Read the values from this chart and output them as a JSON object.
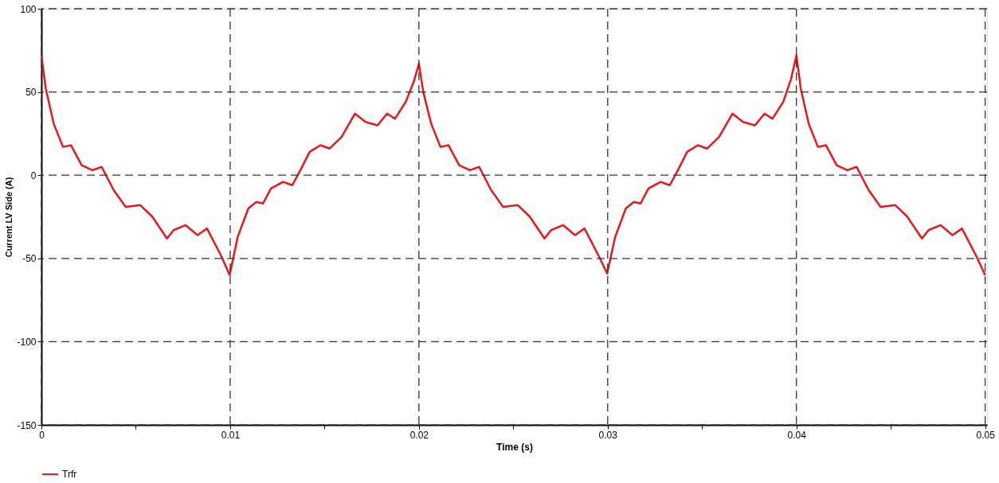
{
  "chart_data": {
    "type": "line",
    "xlabel": "Time (s)",
    "ylabel": "Current LV Side (A)",
    "xlim": [
      0,
      0.0501
    ],
    "ylim": [
      -150,
      100
    ],
    "xticks": [
      0,
      {
        "value": 0.005,
        "label": null
      },
      0.01,
      {
        "value": 0.015,
        "label": null
      },
      0.02,
      {
        "value": 0.025,
        "label": null
      },
      0.03,
      {
        "value": 0.035,
        "label": null
      },
      0.04,
      {
        "value": 0.045,
        "label": null
      },
      0.05
    ],
    "yticks": [
      -150,
      -100,
      -50,
      0,
      50,
      100
    ],
    "grid": true,
    "legend": "bottom left",
    "line_style": "solid",
    "marker": "none",
    "series": [
      {
        "name": "Trfr",
        "color": "#e8171b",
        "x": [
          0,
          0.00023,
          0.00065,
          0.00114,
          0.00157,
          0.00213,
          0.0027,
          0.00319,
          0.00383,
          0.00446,
          0.00524,
          0.00588,
          0.00665,
          0.007,
          0.00764,
          0.00827,
          0.00877,
          0.00955,
          0.00997,
          0.0104,
          0.01096,
          0.01139,
          0.01174,
          0.01216,
          0.0128,
          0.01329,
          0.01372,
          0.01421,
          0.01478,
          0.01527,
          0.0159,
          0.01661,
          0.01717,
          0.01781,
          0.01831,
          0.01873,
          0.0193,
          0.01972,
          0.02,
          0.02023,
          0.02065,
          0.02114,
          0.02157,
          0.02213,
          0.0227,
          0.02319,
          0.02383,
          0.02446,
          0.02524,
          0.02588,
          0.02665,
          0.027,
          0.02764,
          0.02827,
          0.02877,
          0.02955,
          0.02997,
          0.0304,
          0.03096,
          0.03139,
          0.03174,
          0.03216,
          0.0328,
          0.03329,
          0.03372,
          0.03421,
          0.03478,
          0.03527,
          0.0359,
          0.03661,
          0.03717,
          0.03781,
          0.03831,
          0.03873,
          0.0393,
          0.03972,
          0.04,
          0.04023,
          0.04065,
          0.04114,
          0.04157,
          0.04213,
          0.0427,
          0.04319,
          0.04383,
          0.04446,
          0.04524,
          0.04588,
          0.04665,
          0.047,
          0.04764,
          0.04827,
          0.04877,
          0.04955,
          0.05
        ],
        "values": [
          72,
          52,
          31,
          17,
          18,
          6,
          3,
          5,
          -9,
          -19,
          -18,
          -25,
          -38,
          -33,
          -30,
          -36,
          -32,
          -49,
          -60,
          -37,
          -20,
          -16,
          -17,
          -8,
          -4,
          -6,
          3,
          14,
          18,
          16,
          23,
          37,
          32,
          30,
          37,
          34,
          44,
          56,
          67,
          50,
          31,
          17,
          18,
          6,
          3,
          5,
          -9,
          -19,
          -18,
          -25,
          -38,
          -33,
          -30,
          -36,
          -32,
          -49,
          -59,
          -37,
          -20,
          -16,
          -17,
          -8,
          -4,
          -6,
          3,
          14,
          18,
          16,
          23,
          37,
          32,
          30,
          37,
          34,
          44,
          58,
          72,
          52,
          31,
          17,
          18,
          6,
          3,
          5,
          -9,
          -19,
          -18,
          -25,
          -38,
          -33,
          -30,
          -36,
          -32,
          -49,
          -60
        ]
      }
    ]
  }
}
